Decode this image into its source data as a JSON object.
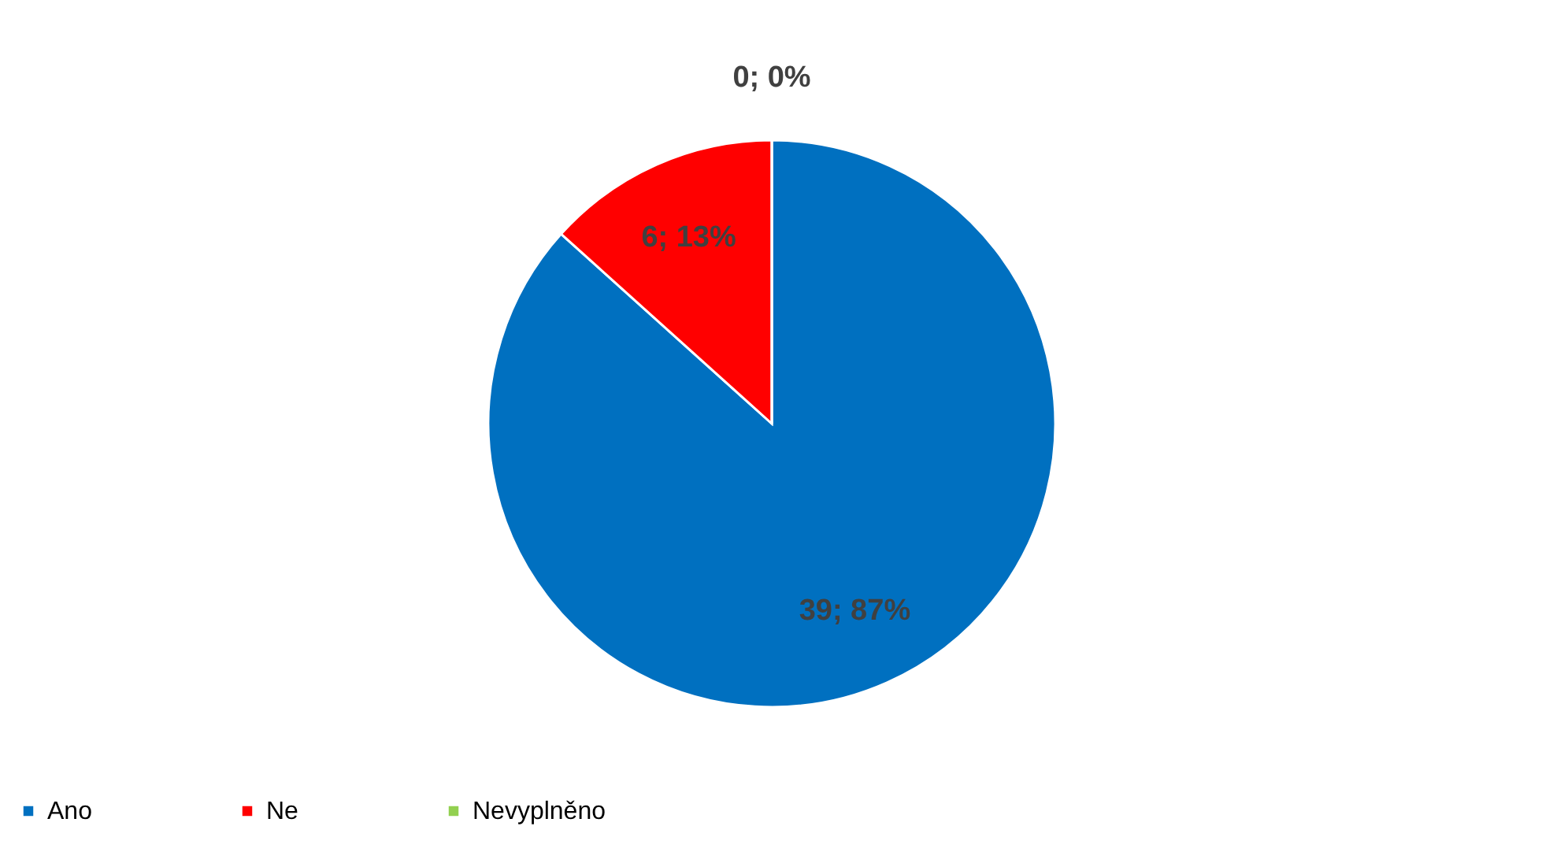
{
  "chart_data": {
    "type": "pie",
    "categories": [
      "Ano",
      "Ne",
      "Nevyplněno"
    ],
    "values": [
      39,
      6,
      0
    ],
    "colors": [
      "#0070c0",
      "#ff0000",
      "#92d050"
    ],
    "value_labels": [
      "39; 87%",
      "6; 13%",
      "0; 0%"
    ],
    "legend": "bottom"
  }
}
